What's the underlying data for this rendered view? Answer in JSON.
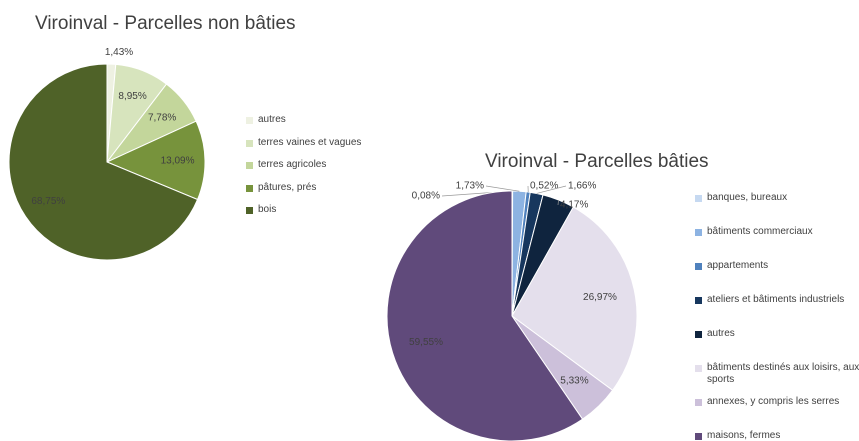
{
  "chart_data": [
    {
      "type": "pie",
      "title": "Viroinval - Parcelles non bâties",
      "categories": [
        "autres",
        "terres vaines et vagues",
        "terres agricoles",
        "pâtures, prés",
        "bois"
      ],
      "values": [
        1.43,
        8.95,
        7.78,
        13.09,
        68.75
      ],
      "value_labels": [
        "1,43%",
        "8,95%",
        "7,78%",
        "13,09%",
        "68,75%"
      ],
      "colors": [
        "#eef1e2",
        "#d7e4bd",
        "#c3d69b",
        "#77933c",
        "#4f6228"
      ]
    },
    {
      "type": "pie",
      "title": "Viroinval - Parcelles bâties",
      "categories": [
        "banques, bureaux",
        "bâtiments commerciaux",
        "appartements",
        "ateliers et bâtiments industriels",
        "autres",
        "bâtiments destinés aux loisirs, aux sports",
        "annexes, y compris les serres",
        "maisons, fermes"
      ],
      "values": [
        0.08,
        1.73,
        0.52,
        1.66,
        4.17,
        26.97,
        5.33,
        59.55
      ],
      "value_labels": [
        "0,08%",
        "1,73%",
        "0,52%",
        "1,66%",
        "4,17%",
        "26,97%",
        "5,33%",
        "59,55%"
      ],
      "colors": [
        "#c6d9f1",
        "#8db3e2",
        "#4f81bd",
        "#17375e",
        "#0f243e",
        "#e4dfec",
        "#ccc0da",
        "#604a7b"
      ]
    }
  ]
}
